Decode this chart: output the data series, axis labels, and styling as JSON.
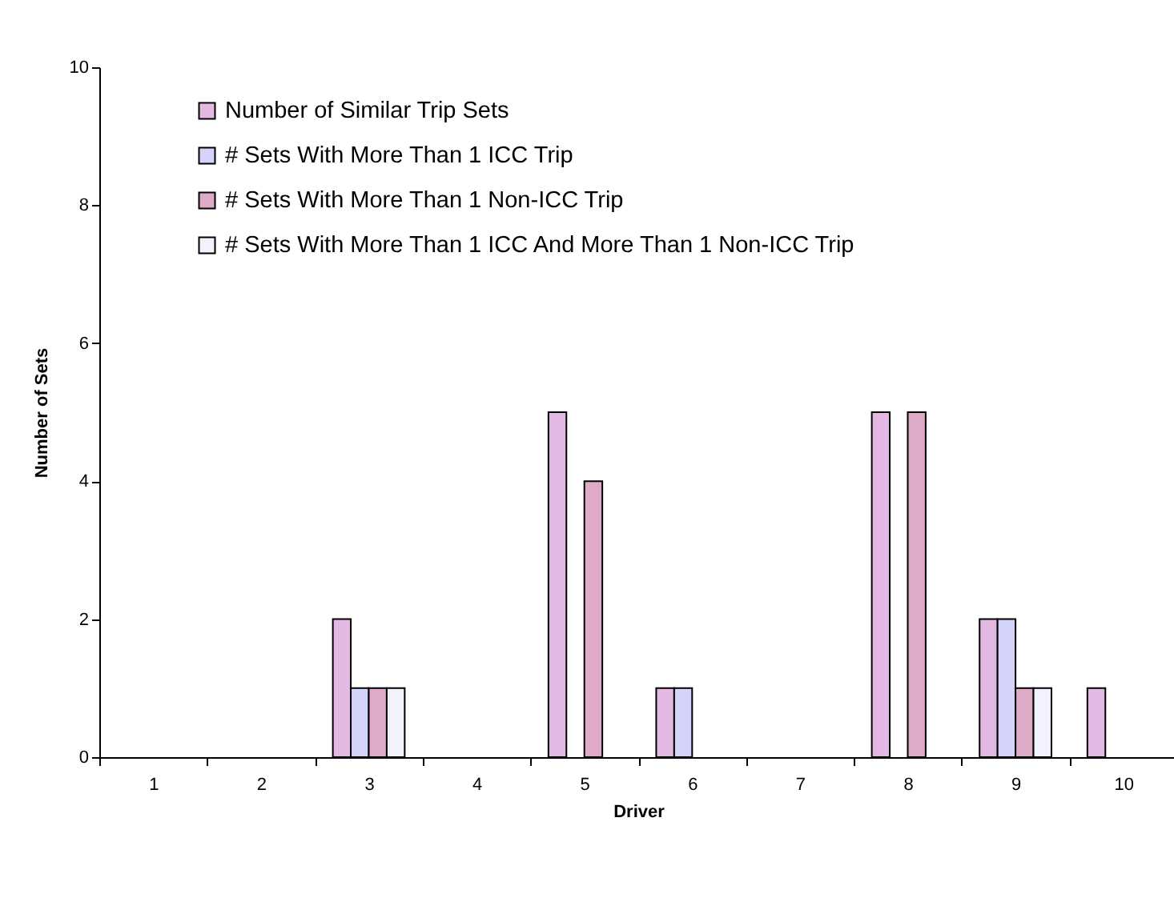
{
  "chart_data": {
    "type": "bar",
    "xlabel": "Driver",
    "ylabel": "Number of Sets",
    "categories": [
      "1",
      "2",
      "3",
      "4",
      "5",
      "6",
      "7",
      "8",
      "9",
      "10"
    ],
    "series": [
      {
        "name": "Number of Similar Trip Sets",
        "color": "#e3b8e3",
        "values": [
          0,
          0,
          2,
          0,
          5,
          1,
          0,
          5,
          2,
          1
        ]
      },
      {
        "name": "# Sets With More Than 1 ICC Trip",
        "color": "#d4d4fb",
        "values": [
          0,
          0,
          1,
          0,
          0,
          1,
          0,
          0,
          2,
          0
        ]
      },
      {
        "name": "# Sets With More Than 1 Non-ICC Trip",
        "color": "#deaac8",
        "values": [
          0,
          0,
          1,
          0,
          4,
          0,
          0,
          5,
          1,
          0
        ]
      },
      {
        "name": "# Sets With More Than 1 ICC And More Than 1 Non-ICC Trip",
        "color": "#f2f2ff",
        "values": [
          0,
          0,
          1,
          0,
          0,
          0,
          0,
          0,
          1,
          0
        ]
      }
    ],
    "ylim": [
      0,
      10
    ],
    "yticks": [
      0,
      2,
      4,
      6,
      8,
      10
    ],
    "legend": "top left"
  }
}
